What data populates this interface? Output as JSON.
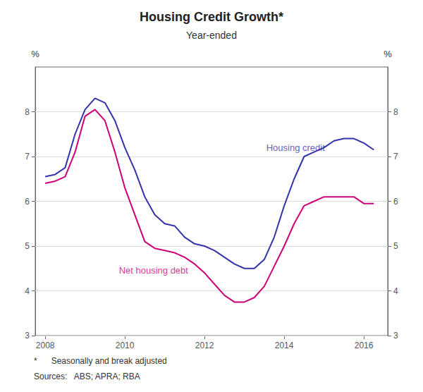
{
  "chart_data": {
    "type": "line",
    "title": "Housing Credit Growth*",
    "subtitle": "Year-ended",
    "ylabel": "%",
    "y2label": "%",
    "notes": [
      "*      Seasonally and break adjusted",
      "Sources:   ABS; APRA; RBA"
    ],
    "x": [
      2008.0,
      2008.25,
      2008.5,
      2008.75,
      2009.0,
      2009.25,
      2009.5,
      2009.75,
      2010.0,
      2010.25,
      2010.5,
      2010.75,
      2011.0,
      2011.25,
      2011.5,
      2011.75,
      2012.0,
      2012.25,
      2012.5,
      2012.75,
      2013.0,
      2013.25,
      2013.5,
      2013.75,
      2014.0,
      2014.25,
      2014.5,
      2014.75,
      2015.0,
      2015.25,
      2015.5,
      2015.75,
      2016.0,
      2016.25
    ],
    "series": [
      {
        "color": "#3333AA",
        "values": [
          6.55,
          6.6,
          6.75,
          7.5,
          8.05,
          8.3,
          8.2,
          7.8,
          7.2,
          6.7,
          6.1,
          5.7,
          5.5,
          5.45,
          5.2,
          5.05,
          5.0,
          4.9,
          4.75,
          4.6,
          4.5,
          4.5,
          4.7,
          5.2,
          5.9,
          6.5,
          7.0,
          7.1,
          7.2,
          7.35,
          7.4,
          7.4,
          7.3,
          7.15
        ]
      },
      {
        "color": "#CC0077",
        "values": [
          6.4,
          6.45,
          6.55,
          7.1,
          7.9,
          8.05,
          7.8,
          7.1,
          6.3,
          5.7,
          5.1,
          4.95,
          4.9,
          4.85,
          4.75,
          4.6,
          4.4,
          4.15,
          3.9,
          3.75,
          3.75,
          3.85,
          4.1,
          4.55,
          5.0,
          5.5,
          5.9,
          6.0,
          6.1,
          6.1,
          6.1,
          6.1,
          5.95,
          5.95
        ]
      }
    ],
    "annotations": [
      {
        "text": "Housing credit",
        "x": 2013.55,
        "y": 7.2,
        "color": "#3333AA"
      },
      {
        "text": "Net housing debt",
        "x": 2009.85,
        "y": 4.45,
        "color": "#CC0077"
      }
    ],
    "xlim": [
      2007.75,
      2016.6
    ],
    "xticks": [
      2008,
      2010,
      2012,
      2014,
      2016
    ],
    "ylim": [
      3,
      9
    ],
    "yticks": [
      3,
      4,
      5,
      6,
      7,
      8
    ],
    "y2lim": [
      3,
      9
    ],
    "y2ticks": [
      3,
      4,
      5,
      6,
      7,
      8
    ],
    "grid": true
  }
}
